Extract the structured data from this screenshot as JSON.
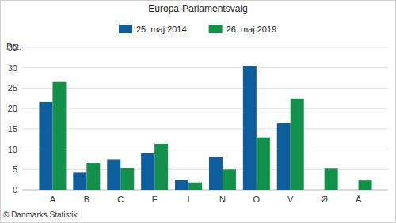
{
  "chart_data": {
    "type": "bar",
    "title": "Europa-Parlamentsvalg",
    "y_label": "Pct.",
    "categories": [
      "A",
      "B",
      "C",
      "F",
      "I",
      "N",
      "O",
      "V",
      "Ø",
      "Å"
    ],
    "series": [
      {
        "name": "25. maj 2014",
        "color": "#0e5d9c",
        "values": [
          21.6,
          4.2,
          7.5,
          9.0,
          2.5,
          8.1,
          30.5,
          16.5,
          null,
          null
        ]
      },
      {
        "name": "26. maj 2019",
        "color": "#13904a",
        "values": [
          26.5,
          6.6,
          5.3,
          11.3,
          1.8,
          5.0,
          12.9,
          22.4,
          5.2,
          2.3
        ]
      }
    ],
    "ylim": [
      0,
      35
    ],
    "yticks": [
      0,
      5,
      10,
      15,
      20,
      25,
      30,
      35
    ],
    "grid": true,
    "legend": "top",
    "annotations": [
      "© Danmarks Statistik"
    ]
  }
}
